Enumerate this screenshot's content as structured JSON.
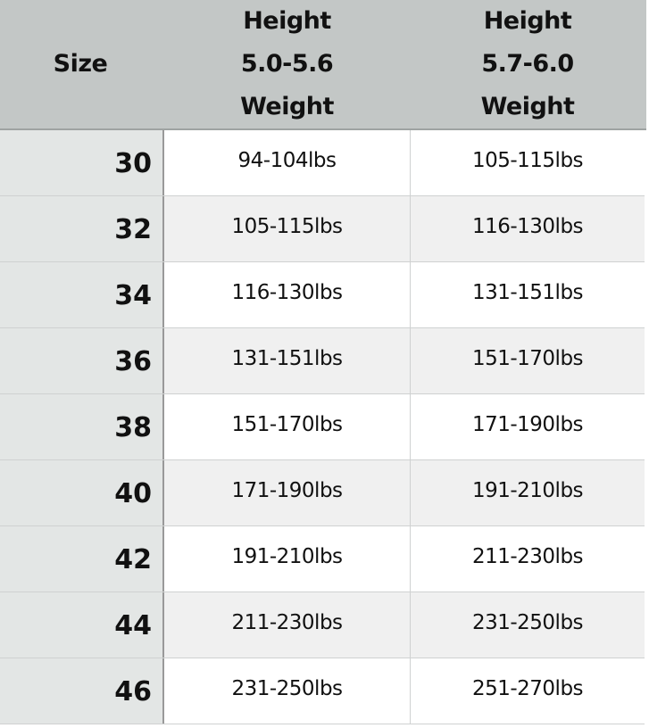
{
  "table": {
    "headers": [
      {
        "lines": [
          "Size"
        ]
      },
      {
        "lines": [
          "Height",
          "5.0-5.6",
          "Weight"
        ]
      },
      {
        "lines": [
          "Height",
          "5.7-6.0",
          "Weight"
        ]
      }
    ],
    "rows": [
      {
        "size": "30",
        "w1": "94-104lbs",
        "w2": "105-115lbs"
      },
      {
        "size": "32",
        "w1": "105-115lbs",
        "w2": "116-130lbs"
      },
      {
        "size": "34",
        "w1": "116-130lbs",
        "w2": "131-151lbs"
      },
      {
        "size": "36",
        "w1": "131-151lbs",
        "w2": "151-170lbs"
      },
      {
        "size": "38",
        "w1": "151-170lbs",
        "w2": "171-190lbs"
      },
      {
        "size": "40",
        "w1": "171-190lbs",
        "w2": "191-210lbs"
      },
      {
        "size": "42",
        "w1": "191-210lbs",
        "w2": "211-230lbs"
      },
      {
        "size": "44",
        "w1": "211-230lbs",
        "w2": "231-250lbs"
      },
      {
        "size": "46",
        "w1": "231-250lbs",
        "w2": "251-270lbs"
      }
    ]
  },
  "colors": {
    "header_bg": "#c3c7c6",
    "size_col_bg": "#e3e6e5",
    "alt_row_bg": "#f0f0f0"
  }
}
